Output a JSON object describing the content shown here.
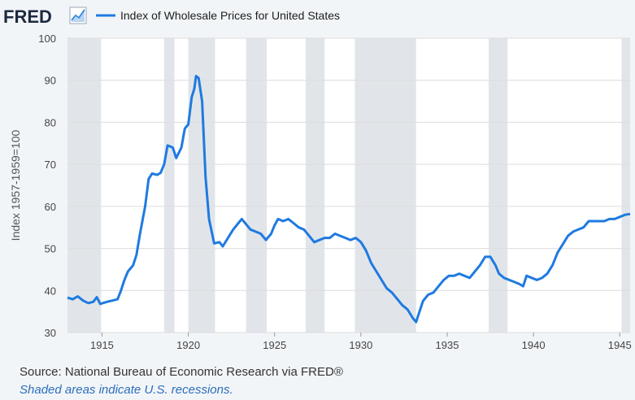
{
  "header": {
    "logo_text": "FRED",
    "logo_icon": "trend-line-icon",
    "legend_label": "Index of Wholesale Prices for United States"
  },
  "colors": {
    "series": "#1f7ae0",
    "recession": "#e1e5ea",
    "plot_bg": "#ffffff",
    "page_bg": "#f2f5f8",
    "grid": "#dcdcdc"
  },
  "chart_data": {
    "type": "line",
    "ylabel": "Index 1957-1959=100",
    "xlabel": "",
    "xlim": [
      1913.0,
      1945.6
    ],
    "ylim": [
      30,
      100
    ],
    "yticks": [
      30,
      40,
      50,
      60,
      70,
      80,
      90,
      100
    ],
    "xticks": [
      1915,
      1920,
      1925,
      1930,
      1935,
      1940,
      1945
    ],
    "grid": true,
    "legend": "top-left",
    "recessions": [
      [
        1913.0,
        1914.95
      ],
      [
        1918.6,
        1919.2
      ],
      [
        1920.0,
        1921.55
      ],
      [
        1923.35,
        1924.55
      ],
      [
        1926.8,
        1927.9
      ],
      [
        1929.65,
        1933.2
      ],
      [
        1937.4,
        1938.5
      ],
      [
        1945.1,
        1945.6
      ]
    ],
    "series": [
      {
        "points": [
          [
            1913.0,
            38.3
          ],
          [
            1913.3,
            37.9
          ],
          [
            1913.6,
            38.6
          ],
          [
            1913.9,
            37.6
          ],
          [
            1914.2,
            37.0
          ],
          [
            1914.5,
            37.3
          ],
          [
            1914.7,
            38.4
          ],
          [
            1914.9,
            36.8
          ],
          [
            1915.3,
            37.3
          ],
          [
            1915.6,
            37.6
          ],
          [
            1915.9,
            37.9
          ],
          [
            1916.1,
            40.0
          ],
          [
            1916.3,
            42.5
          ],
          [
            1916.5,
            44.5
          ],
          [
            1916.8,
            46.0
          ],
          [
            1917.0,
            48.5
          ],
          [
            1917.2,
            53.5
          ],
          [
            1917.5,
            60.0
          ],
          [
            1917.7,
            66.5
          ],
          [
            1917.9,
            67.8
          ],
          [
            1918.2,
            67.5
          ],
          [
            1918.4,
            68.0
          ],
          [
            1918.6,
            70.0
          ],
          [
            1918.8,
            74.5
          ],
          [
            1919.1,
            74.0
          ],
          [
            1919.3,
            71.5
          ],
          [
            1919.6,
            74.0
          ],
          [
            1919.8,
            78.5
          ],
          [
            1920.0,
            79.5
          ],
          [
            1920.2,
            86.0
          ],
          [
            1920.35,
            88.0
          ],
          [
            1920.45,
            91.0
          ],
          [
            1920.6,
            90.5
          ],
          [
            1920.8,
            85.0
          ],
          [
            1921.0,
            67.0
          ],
          [
            1921.2,
            57.0
          ],
          [
            1921.5,
            51.2
          ],
          [
            1921.8,
            51.5
          ],
          [
            1922.0,
            50.5
          ],
          [
            1922.3,
            52.5
          ],
          [
            1922.6,
            54.5
          ],
          [
            1922.9,
            56.0
          ],
          [
            1923.1,
            57.0
          ],
          [
            1923.3,
            56.0
          ],
          [
            1923.6,
            54.5
          ],
          [
            1923.9,
            54.0
          ],
          [
            1924.2,
            53.5
          ],
          [
            1924.5,
            52.0
          ],
          [
            1924.8,
            53.5
          ],
          [
            1925.0,
            55.5
          ],
          [
            1925.2,
            57.0
          ],
          [
            1925.5,
            56.5
          ],
          [
            1925.8,
            57.0
          ],
          [
            1926.1,
            56.0
          ],
          [
            1926.4,
            55.0
          ],
          [
            1926.7,
            54.5
          ],
          [
            1927.0,
            53.0
          ],
          [
            1927.3,
            51.5
          ],
          [
            1927.6,
            52.0
          ],
          [
            1927.9,
            52.5
          ],
          [
            1928.2,
            52.5
          ],
          [
            1928.5,
            53.5
          ],
          [
            1928.8,
            53.0
          ],
          [
            1929.1,
            52.5
          ],
          [
            1929.4,
            52.0
          ],
          [
            1929.7,
            52.5
          ],
          [
            1930.0,
            51.5
          ],
          [
            1930.3,
            49.5
          ],
          [
            1930.6,
            46.5
          ],
          [
            1930.9,
            44.5
          ],
          [
            1931.2,
            42.5
          ],
          [
            1931.5,
            40.5
          ],
          [
            1931.8,
            39.5
          ],
          [
            1932.1,
            38.0
          ],
          [
            1932.4,
            36.5
          ],
          [
            1932.7,
            35.5
          ],
          [
            1933.0,
            33.5
          ],
          [
            1933.2,
            32.5
          ],
          [
            1933.4,
            35.0
          ],
          [
            1933.6,
            37.5
          ],
          [
            1933.9,
            39.0
          ],
          [
            1934.2,
            39.5
          ],
          [
            1934.5,
            41.0
          ],
          [
            1934.8,
            42.5
          ],
          [
            1935.1,
            43.5
          ],
          [
            1935.4,
            43.5
          ],
          [
            1935.7,
            44.0
          ],
          [
            1936.0,
            43.5
          ],
          [
            1936.3,
            43.0
          ],
          [
            1936.6,
            44.5
          ],
          [
            1936.9,
            46.0
          ],
          [
            1937.2,
            48.0
          ],
          [
            1937.5,
            48.0
          ],
          [
            1937.8,
            46.0
          ],
          [
            1938.0,
            44.0
          ],
          [
            1938.3,
            43.0
          ],
          [
            1938.6,
            42.5
          ],
          [
            1938.9,
            42.0
          ],
          [
            1939.2,
            41.5
          ],
          [
            1939.4,
            41.0
          ],
          [
            1939.6,
            43.5
          ],
          [
            1939.9,
            43.0
          ],
          [
            1940.2,
            42.5
          ],
          [
            1940.5,
            43.0
          ],
          [
            1940.8,
            44.0
          ],
          [
            1941.1,
            46.0
          ],
          [
            1941.4,
            49.0
          ],
          [
            1941.7,
            51.0
          ],
          [
            1942.0,
            53.0
          ],
          [
            1942.3,
            54.0
          ],
          [
            1942.6,
            54.5
          ],
          [
            1942.9,
            55.0
          ],
          [
            1943.2,
            56.5
          ],
          [
            1943.5,
            56.5
          ],
          [
            1943.8,
            56.5
          ],
          [
            1944.1,
            56.5
          ],
          [
            1944.4,
            57.0
          ],
          [
            1944.7,
            57.0
          ],
          [
            1945.0,
            57.5
          ],
          [
            1945.3,
            58.0
          ],
          [
            1945.6,
            58.2
          ]
        ]
      }
    ]
  },
  "footer": {
    "source": "Source: National Bureau of Economic Research via FRED®",
    "note": "Shaded areas indicate U.S. recessions."
  }
}
